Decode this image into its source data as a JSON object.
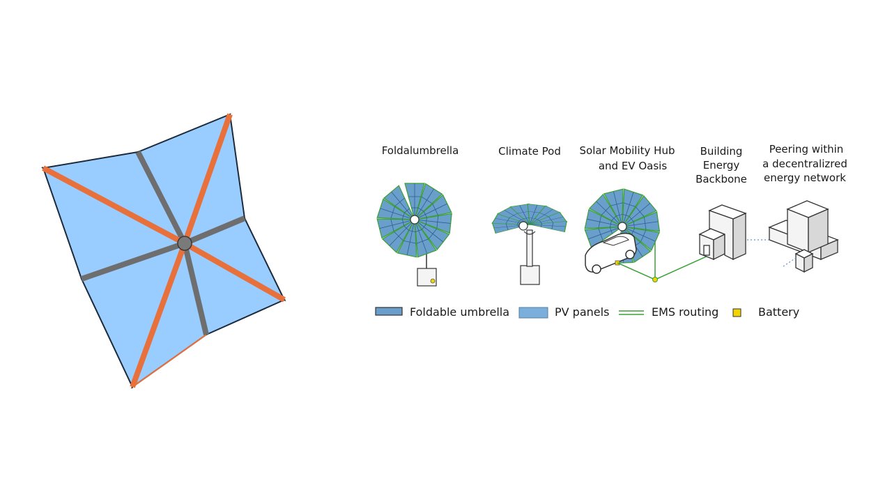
{
  "stage_titles": {
    "foldalumbrella": "Foldalumbrella",
    "climate_pod": "Climate Pod",
    "solar_hub_line1": "Solar Mobility Hub",
    "solar_hub_line2": "and EV Oasis",
    "building_line1": "Building",
    "building_line2": "Energy",
    "building_line3": "Backbone",
    "peering_line1": "Peering within",
    "peering_line2": "a decentralizred",
    "peering_line3": "energy network"
  },
  "legend": {
    "foldable_umbrella": "Foldable umbrella",
    "pv_panels": "PV panels",
    "ems_routing": "EMS routing",
    "battery": "Battery"
  },
  "colors": {
    "umbrella_fill": "#99ccff",
    "umbrella_edge": "#1c2a3a",
    "orange_rib": "#e8703a",
    "gray_rib": "#6e6e6e",
    "pv_fill": "#6a9ecb",
    "pv_grid": "#2d5f8f",
    "ems_green": "#3aa035",
    "battery_yellow": "#f2d400"
  }
}
